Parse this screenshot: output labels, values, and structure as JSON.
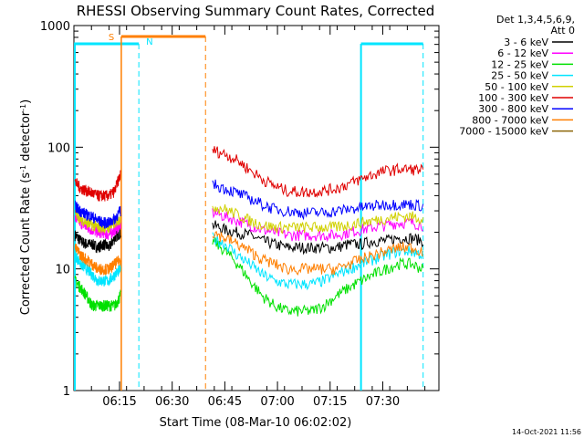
{
  "chart_data": {
    "type": "line",
    "title": "RHESSI Observing Summary Count Rates, Corrected",
    "xlabel": "Start Time (08-Mar-10 06:02:02)",
    "ylabel_main": "Corrected Count Rate (s",
    "ylabel_sup1": "-1",
    "ylabel_mid": " detector",
    "ylabel_sup2": "-1",
    "ylabel_end": ")",
    "yscale": "log",
    "ylim": [
      1,
      1000
    ],
    "xlim_minutes": [
      0,
      104
    ],
    "x_ticks": [
      {
        "label": "06:15",
        "min": 13
      },
      {
        "label": "06:30",
        "min": 28
      },
      {
        "label": "06:45",
        "min": 43
      },
      {
        "label": "07:00",
        "min": 58
      },
      {
        "label": "07:15",
        "min": 73
      },
      {
        "label": "07:30",
        "min": 88
      }
    ],
    "y_ticks": [
      {
        "label": "1",
        "value": 1
      },
      {
        "label": "10",
        "value": 10
      },
      {
        "label": "100",
        "value": 100
      },
      {
        "label": "1000",
        "value": 1000
      }
    ],
    "legend_header": [
      "Det 1,3,4,5,6,9,",
      "Att 0"
    ],
    "footer_date": "14-Oct-2021 11:56",
    "annotations": {
      "saa": {
        "label": "S",
        "start_min": 13.5,
        "end_min": 37.5,
        "color": "#ff7f00"
      },
      "night": [
        {
          "label": "N",
          "start_min": 0,
          "end_min": 18.5,
          "color": "#00e5ff"
        },
        {
          "label": "",
          "start_min": 81.8,
          "end_min": 99.5,
          "color": "#00e5ff"
        }
      ],
      "saa_dashed_min": 37.5,
      "night_dashed_min": [
        18.5,
        99.5
      ],
      "orange_solid_min": 13.5
    },
    "segments": [
      [
        0.3,
        13.3
      ],
      [
        39.5,
        99.5
      ]
    ],
    "series": [
      {
        "name": "3 - 6 keV",
        "color": "#000000",
        "pre": [
          19,
          17,
          16,
          16,
          15,
          16,
          15,
          18,
          20
        ],
        "post": [
          23,
          21,
          20,
          19,
          17,
          16,
          15,
          15,
          15,
          15,
          15,
          16,
          16,
          17,
          17,
          18,
          18,
          17
        ]
      },
      {
        "name": "6 - 12 keV",
        "color": "#ff00ff",
        "pre": [
          26,
          24,
          22,
          21,
          20,
          20,
          19,
          21,
          23
        ],
        "post": [
          29,
          27,
          25,
          23,
          21,
          20,
          19,
          19,
          19,
          19,
          19,
          20,
          21,
          22,
          23,
          24,
          24,
          23
        ]
      },
      {
        "name": "12 - 25 keV",
        "color": "#00e000",
        "pre": [
          8,
          7,
          6,
          5,
          5,
          5,
          5,
          5,
          6
        ],
        "post": [
          17,
          14,
          11,
          8,
          6,
          5,
          4.5,
          4.5,
          4.5,
          5,
          6,
          7,
          8,
          9,
          10,
          11,
          11,
          10
        ]
      },
      {
        "name": "25 - 50 keV",
        "color": "#00e5ff",
        "pre": [
          13,
          11,
          10,
          9,
          8,
          8,
          8,
          9,
          10
        ],
        "post": [
          18,
          16,
          13,
          11,
          9,
          8,
          7.5,
          7.5,
          7.5,
          8,
          9,
          10,
          11,
          12,
          13,
          14,
          14,
          13
        ]
      },
      {
        "name": "50 - 100 keV",
        "color": "#d0d000",
        "pre": [
          29,
          26,
          24,
          23,
          22,
          22,
          22,
          24,
          26
        ],
        "post": [
          33,
          31,
          28,
          25,
          23,
          22,
          22,
          22,
          22,
          22,
          22,
          23,
          24,
          25,
          26,
          27,
          27,
          26
        ]
      },
      {
        "name": "100 - 300 keV",
        "color": "#e00000",
        "pre": [
          52,
          46,
          44,
          42,
          40,
          40,
          40,
          44,
          60
        ],
        "post": [
          95,
          88,
          78,
          65,
          55,
          48,
          44,
          43,
          43,
          44,
          46,
          50,
          55,
          60,
          64,
          66,
          66,
          65
        ]
      },
      {
        "name": "300 - 800 keV",
        "color": "#0000ff",
        "pre": [
          33,
          30,
          28,
          27,
          25,
          24,
          24,
          26,
          30
        ],
        "post": [
          50,
          46,
          42,
          38,
          34,
          31,
          30,
          29,
          29,
          29,
          30,
          31,
          32,
          33,
          34,
          34,
          34,
          33
        ]
      },
      {
        "name": "800 - 7000 keV",
        "color": "#ff7f00",
        "pre": [
          15,
          13,
          12,
          11,
          10,
          10,
          10,
          11,
          12
        ],
        "post": [
          20,
          18,
          16,
          14,
          12,
          11,
          10,
          10,
          10,
          10,
          10,
          11,
          12,
          13,
          14,
          15,
          15,
          14
        ]
      },
      {
        "name": "7000 - 15000 keV",
        "color": "#8b6508",
        "pre": [],
        "post": []
      }
    ]
  }
}
